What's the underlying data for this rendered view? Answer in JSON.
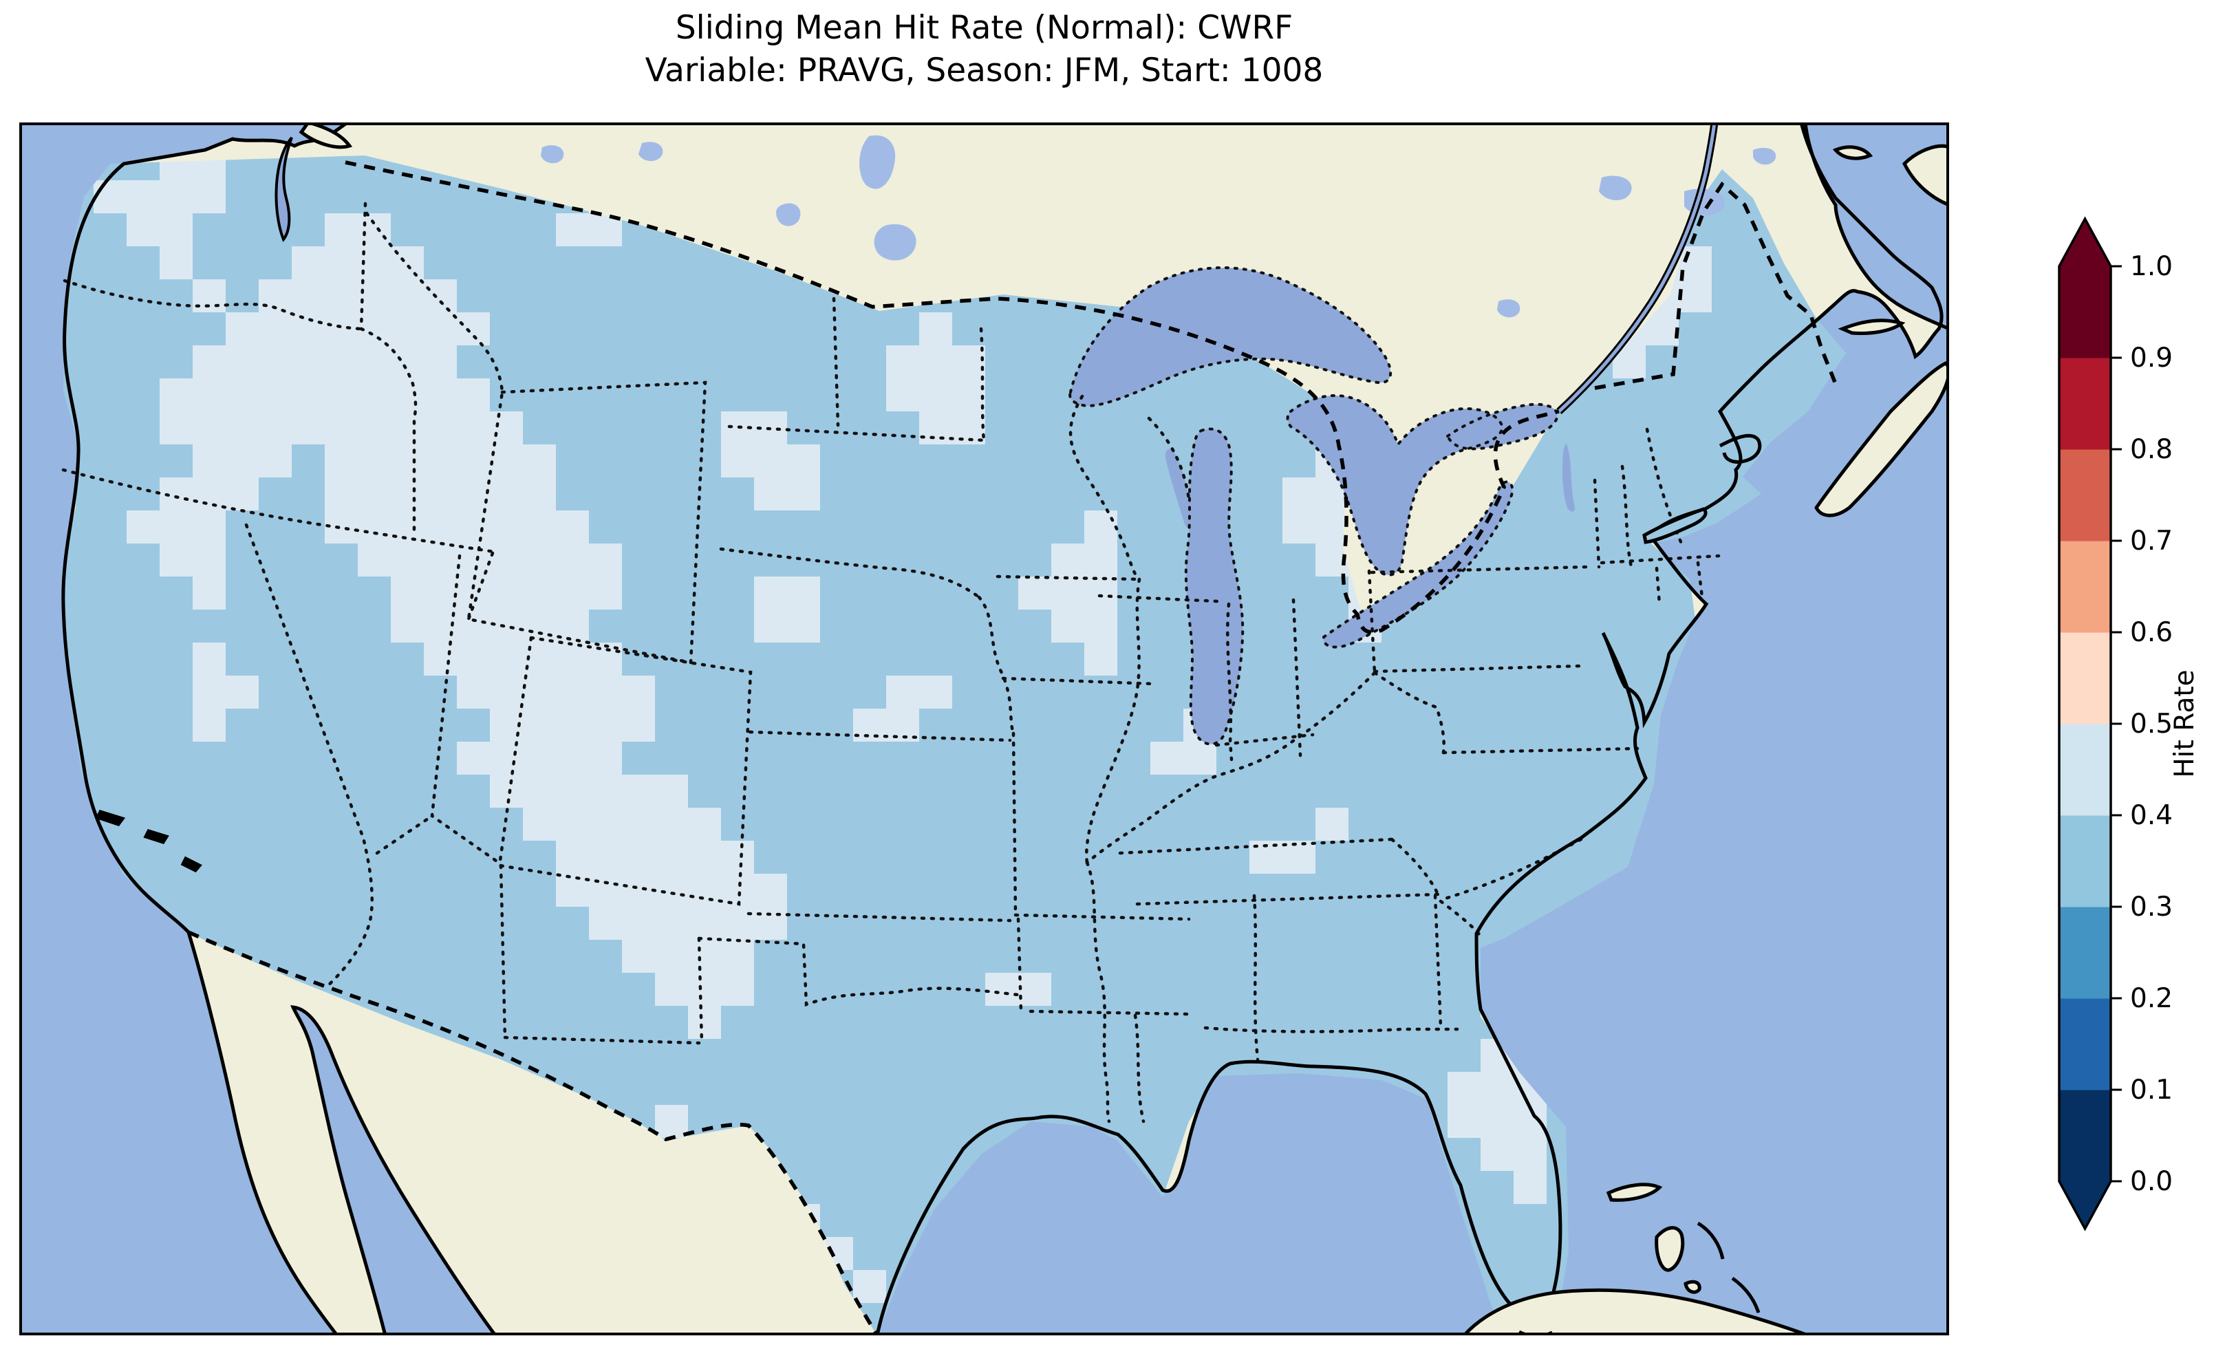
{
  "figure": {
    "title_line1": "Sliding Mean Hit Rate (Normal): CWRF",
    "title_line2": "Variable: PRAVG, Season: JFM, Start: 1008"
  },
  "colorbar": {
    "label": "Hit Rate",
    "ticks": [
      "1.0",
      "0.9",
      "0.8",
      "0.7",
      "0.6",
      "0.5",
      "0.4",
      "0.3",
      "0.2",
      "0.1",
      "0.0"
    ],
    "extend": "both",
    "palette_low_to_high": [
      "#053061",
      "#2166ac",
      "#4393c3",
      "#92c5de",
      "#d1e5f0",
      "#fddbc7",
      "#f4a582",
      "#d6604d",
      "#b2182b",
      "#67001f"
    ]
  },
  "map": {
    "colors": {
      "ocean": "#97b6e1",
      "land": "#efefdb",
      "great_lakes": "#8fa8da",
      "small_lakes": "#a2bbe6",
      "coastline": "#000000",
      "borders": "#111111"
    },
    "grid_bins": {
      "2": {
        "hit_rate_range": "0.2-0.3",
        "color": "#4393c3"
      },
      "3": {
        "hit_rate_range": "0.3-0.4",
        "color": "#9cc8e2"
      },
      "4": {
        "hit_rate_range": "0.4-0.5",
        "color": "#dce9f2"
      }
    },
    "grid_rows": [
      "3333443333333333333333333333333333333333333333344333333333",
      "3344443333333333343333333333333333333333333334444333333333",
      "3334433334433333443333333333333333334333333334444433333333",
      "3333433344443333333333333333333333443333333333444443333333",
      "3333343444444333333333333333333333333333343333444443333333",
      "3333334444444433333333333334333333333333344333344433333333",
      "3333344444444333333333333344433333333333333333334333333333",
      "3333444444444433333333333344433333333333444333333333333333",
      "3333444444444443333334433334433333333333444433333333333333",
      "3333344434444444333334443333333333333334444333333333333333",
      "3333444334444444333333443333333333333344433333333333333333",
      "3334443334444444433333333333333343333344333333333333333333",
      "3333443333444444443333333333333443333334433333333333333333",
      "3333343333344444443333443333334443333333443333333333333333",
      "3333333333344444433333443333333443333333433333333333333333",
      "3333343333334444443333333333333343333333333333333333333333",
      "3333344333333444444333333344333333333333333333333333333333",
      "3333343333333344444333333443333333343333333333333333333333",
      "3333333333333444443333333333333333443333333333333333333333",
      "3333333333333344444433333333333333333333333333333333333333",
      "3333333333333334444443333333333333333334333333333333333333",
      "3333333333333333444444333333333333333443333333333333333333",
      "3333333333333333444444433333333333333333333333333333333333",
      "3333333333333333344444433333333333333333333333333333333333",
      "3333333333333333334444333333333333333333333333333333333333",
      "3333333333333333333444333333344333333333333333333333333333",
      "3333333333333333333343333333333333333333333333333333333333",
      "3333333333333333333333333333333333333333333344333333333333",
      "3333333333333333333333333333333333333333333444333333333333",
      "3333333333333333333433333333333333333333333444333333333333",
      "3333333333333333333333333333333333333333333344333333333333",
      "3333333333333333333333333333333333333333333334333333333333",
      "3333333333333333333333343333333333333333333333333333333333",
      "3333333333333333333333334333333333333333333333333333333333",
      "3333333333333333333333333433333333333333333333333333333333",
      "3333333333333333333333333333333333333333333333333333333333"
    ]
  }
}
